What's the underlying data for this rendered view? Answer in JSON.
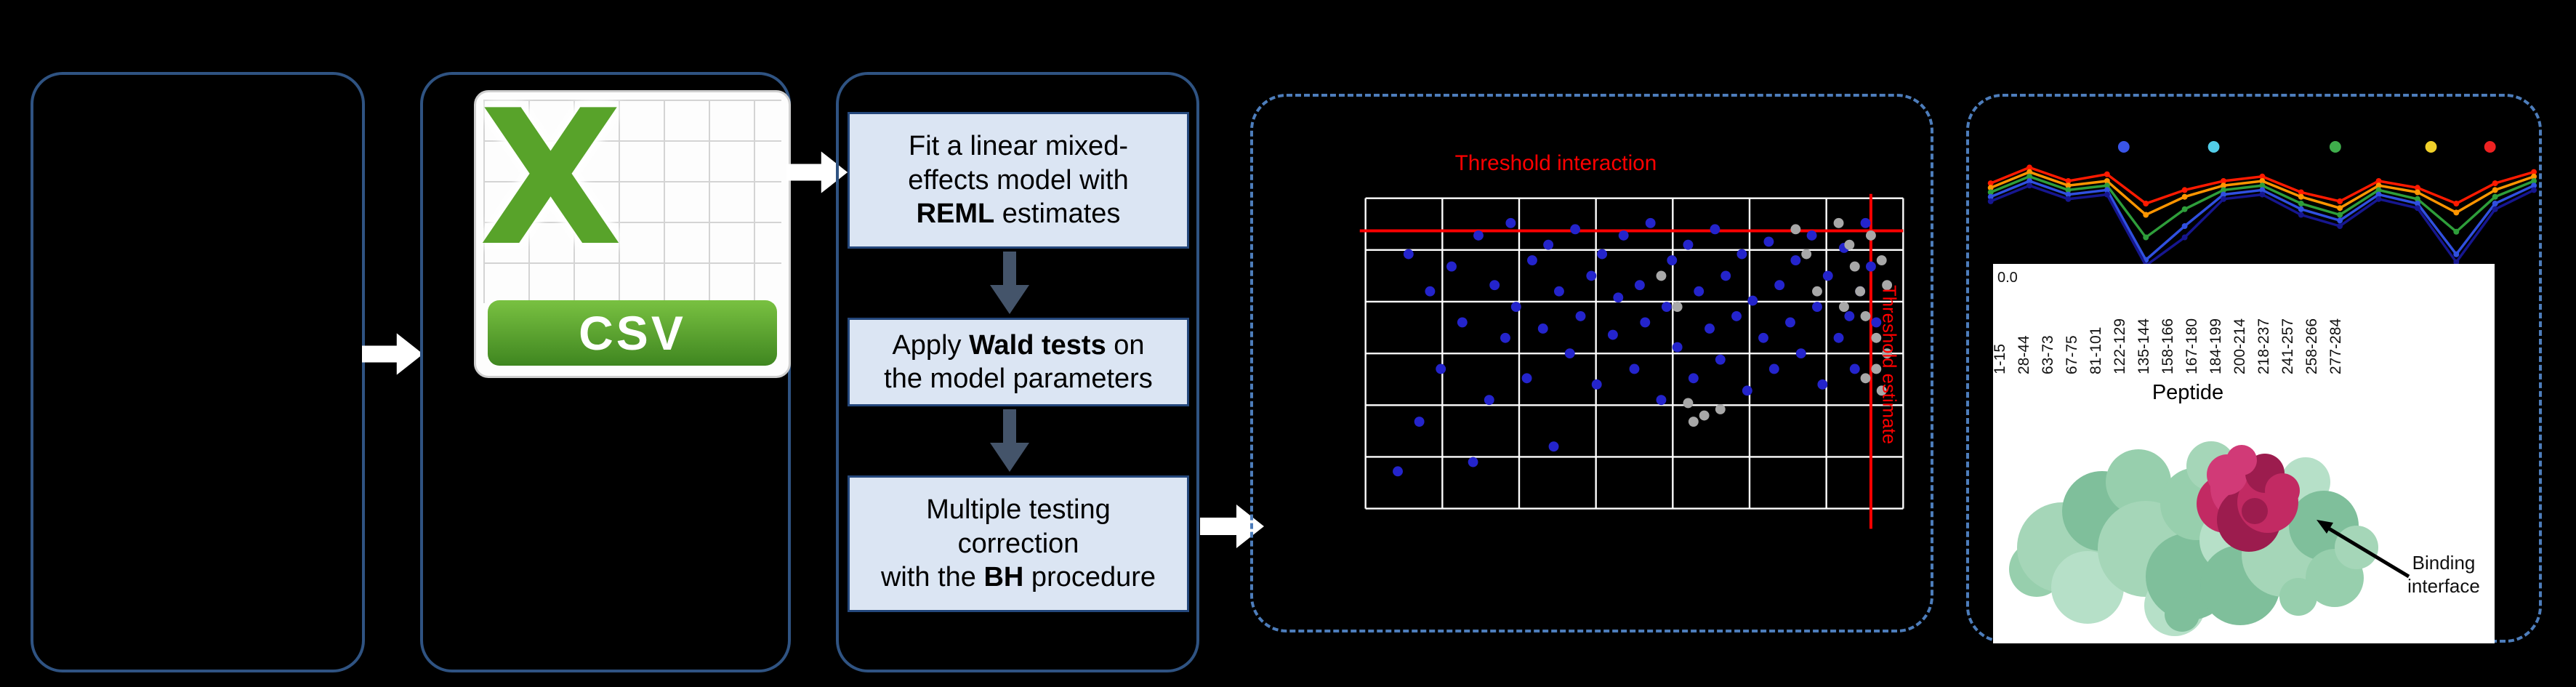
{
  "background": "#000000",
  "csv_icon": {
    "letter": "X",
    "label": "CSV"
  },
  "steps": {
    "box1": {
      "lines": [
        [
          {
            "t": "Fit a linear mixed-"
          }
        ],
        [
          {
            "t": "effects model with"
          }
        ],
        [
          {
            "t": "REML",
            "b": true
          },
          {
            "t": " estimates"
          }
        ]
      ]
    },
    "box2": {
      "lines": [
        [
          {
            "t": "Apply "
          },
          {
            "t": "Wald tests",
            "b": true
          },
          {
            "t": " on"
          }
        ],
        [
          {
            "t": "the model parameters"
          }
        ]
      ]
    },
    "box3": {
      "lines": [
        [
          {
            "t": "Multiple testing"
          }
        ],
        [
          {
            "t": "correction"
          }
        ],
        [
          {
            "t": "with the "
          },
          {
            "t": "BH",
            "b": true
          },
          {
            "t": " procedure"
          }
        ]
      ]
    }
  },
  "chart_data": [
    {
      "type": "scatter",
      "title": "Threshold interaction",
      "side_label": "Threshold estimate",
      "grid": {
        "cols": 7,
        "rows": 6,
        "color": "#ffffff"
      },
      "x_range": [
        0,
        100
      ],
      "y_range": [
        0,
        100
      ],
      "threshold_h_y": 10.5,
      "threshold_v_x": 94,
      "threshold_color": "#ff0000",
      "series": [
        {
          "name": "interaction-point",
          "color": "#2424cc",
          "points": [
            [
              6,
              88
            ],
            [
              8,
              18
            ],
            [
              10,
              72
            ],
            [
              12,
              30
            ],
            [
              14,
              55
            ],
            [
              16,
              22
            ],
            [
              18,
              40
            ],
            [
              20,
              85
            ],
            [
              21,
              12
            ],
            [
              23,
              65
            ],
            [
              24,
              28
            ],
            [
              26,
              45
            ],
            [
              27,
              8
            ],
            [
              28,
              35
            ],
            [
              30,
              58
            ],
            [
              31,
              20
            ],
            [
              33,
              42
            ],
            [
              34,
              15
            ],
            [
              35,
              80
            ],
            [
              36,
              30
            ],
            [
              38,
              50
            ],
            [
              39,
              10
            ],
            [
              40,
              38
            ],
            [
              42,
              25
            ],
            [
              43,
              60
            ],
            [
              44,
              18
            ],
            [
              46,
              44
            ],
            [
              47,
              32
            ],
            [
              48,
              12
            ],
            [
              50,
              55
            ],
            [
              51,
              28
            ],
            [
              52,
              40
            ],
            [
              53,
              8
            ],
            [
              55,
              65
            ],
            [
              56,
              35
            ],
            [
              57,
              20
            ],
            [
              58,
              48
            ],
            [
              60,
              15
            ],
            [
              61,
              58
            ],
            [
              62,
              30
            ],
            [
              64,
              42
            ],
            [
              65,
              10
            ],
            [
              66,
              52
            ],
            [
              67,
              25
            ],
            [
              69,
              38
            ],
            [
              70,
              18
            ],
            [
              71,
              62
            ],
            [
              72,
              33
            ],
            [
              74,
              45
            ],
            [
              75,
              14
            ],
            [
              76,
              55
            ],
            [
              77,
              28
            ],
            [
              79,
              40
            ],
            [
              80,
              20
            ],
            [
              81,
              50
            ],
            [
              83,
              12
            ],
            [
              84,
              35
            ],
            [
              85,
              60
            ],
            [
              86,
              25
            ],
            [
              88,
              45
            ],
            [
              89,
              16
            ],
            [
              90,
              38
            ],
            [
              91,
              55
            ],
            [
              92,
              30
            ],
            [
              93,
              8
            ],
            [
              94,
              22
            ],
            [
              95,
              40
            ]
          ]
        },
        {
          "name": "filtered-point",
          "color": "#a8a8a8",
          "points": [
            [
              55,
              25
            ],
            [
              58,
              35
            ],
            [
              60,
              66
            ],
            [
              61,
              72
            ],
            [
              63,
              70
            ],
            [
              66,
              68
            ],
            [
              80,
              10
            ],
            [
              82,
              18
            ],
            [
              84,
              30
            ],
            [
              88,
              8
            ],
            [
              89,
              35
            ],
            [
              90,
              15
            ],
            [
              91,
              22
            ],
            [
              92,
              30
            ],
            [
              93,
              38
            ],
            [
              93,
              58
            ],
            [
              94,
              12
            ],
            [
              95,
              45
            ],
            [
              95,
              55
            ],
            [
              96,
              20
            ],
            [
              96,
              62
            ],
            [
              97,
              28
            ],
            [
              97,
              50
            ]
          ]
        }
      ]
    },
    {
      "type": "line",
      "categories": [
        "1-15",
        "28-44",
        "63-73",
        "67-75",
        "81-101",
        "122-129",
        "135-144",
        "158-166",
        "167-180",
        "184-199",
        "200-214",
        "218-237",
        "241-257",
        "258-266",
        "277-284"
      ],
      "xlabel": "Peptide",
      "y_tick_label": "0.0",
      "ylim": [
        0,
        1
      ],
      "legend_dot_colors": [
        "#3a55e8",
        "#52cde8",
        "#3fae4c",
        "#f0d02a",
        "#ee2222"
      ],
      "series": [
        {
          "name": "red",
          "color": "#ff1a00",
          "values": [
            0.78,
            0.92,
            0.8,
            0.86,
            0.6,
            0.72,
            0.8,
            0.84,
            0.7,
            0.62,
            0.8,
            0.74,
            0.6,
            0.78,
            0.88
          ]
        },
        {
          "name": "orange",
          "color": "#ff9500",
          "values": [
            0.74,
            0.88,
            0.76,
            0.8,
            0.5,
            0.66,
            0.76,
            0.8,
            0.66,
            0.56,
            0.76,
            0.7,
            0.52,
            0.72,
            0.84
          ]
        },
        {
          "name": "green",
          "color": "#2e9e3a",
          "values": [
            0.7,
            0.84,
            0.72,
            0.76,
            0.3,
            0.55,
            0.72,
            0.76,
            0.6,
            0.5,
            0.72,
            0.64,
            0.35,
            0.66,
            0.8
          ]
        },
        {
          "name": "blue",
          "color": "#3050e0",
          "values": [
            0.66,
            0.8,
            0.68,
            0.72,
            0.1,
            0.4,
            0.68,
            0.72,
            0.55,
            0.45,
            0.68,
            0.6,
            0.15,
            0.6,
            0.76
          ]
        },
        {
          "name": "navy",
          "color": "#16168f",
          "values": [
            0.62,
            0.76,
            0.64,
            0.68,
            0.05,
            0.3,
            0.64,
            0.68,
            0.5,
            0.4,
            0.64,
            0.56,
            0.08,
            0.55,
            0.72
          ]
        }
      ]
    }
  ],
  "protein": {
    "label_line1": "Binding",
    "label_line2": "interface",
    "body_color": "#a5d6b8",
    "site_color": "#c22a63"
  }
}
